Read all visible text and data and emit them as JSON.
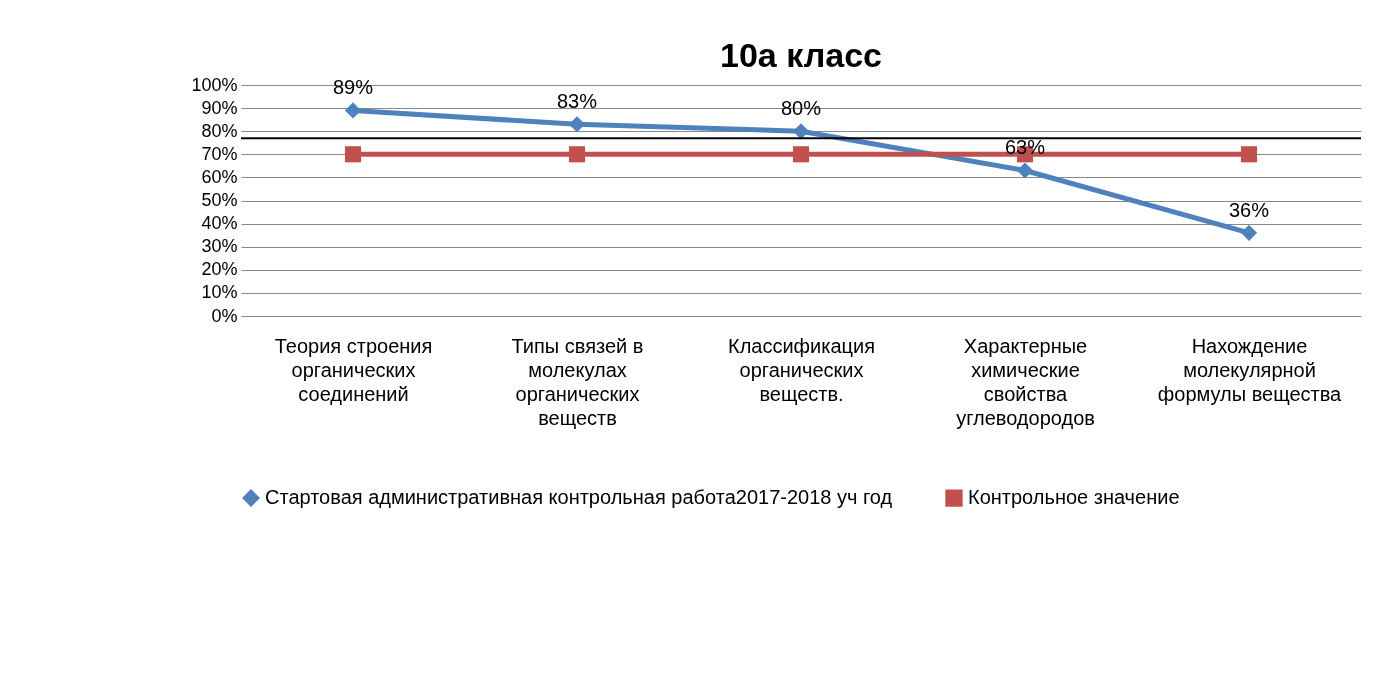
{
  "chart_data": {
    "type": "line",
    "title": "10а класс",
    "categories": [
      "Теория строения органических соединений",
      "Типы связей в молекулах органических веществ",
      "Классификация органических веществ.",
      "Характерные химические свойства углеводородов",
      "Нахождение молекулярной формулы вещества"
    ],
    "series": [
      {
        "name": "Стартовая административная контрольная работа2017-2018 уч год",
        "color": "#4f81bd",
        "values": [
          89,
          83,
          80,
          63,
          36
        ],
        "value_labels": [
          "89%",
          "83%",
          "80%",
          "63%",
          "36%"
        ],
        "marker": "diamond"
      },
      {
        "name": "Контрольное значение",
        "color": "#c0504d",
        "values": [
          70,
          70,
          70,
          70,
          70
        ],
        "marker": "square"
      }
    ],
    "ylim": [
      0,
      100
    ],
    "yticks": [
      {
        "value": 0,
        "label": "0%"
      },
      {
        "value": 10,
        "label": "10%"
      },
      {
        "value": 20,
        "label": "20%"
      },
      {
        "value": 30,
        "label": "30%"
      },
      {
        "value": 40,
        "label": "40%"
      },
      {
        "value": 50,
        "label": "50%"
      },
      {
        "value": 60,
        "label": "60%"
      },
      {
        "value": 70,
        "label": "70%"
      },
      {
        "value": 80,
        "label": "80%"
      },
      {
        "value": 90,
        "label": "90%"
      },
      {
        "value": 100,
        "label": "100%"
      }
    ],
    "ref_lines": [
      {
        "axis": "y",
        "value": 77,
        "color": "#000000"
      }
    ],
    "grid": "y",
    "legend": "bottom",
    "line_style": "solid"
  }
}
